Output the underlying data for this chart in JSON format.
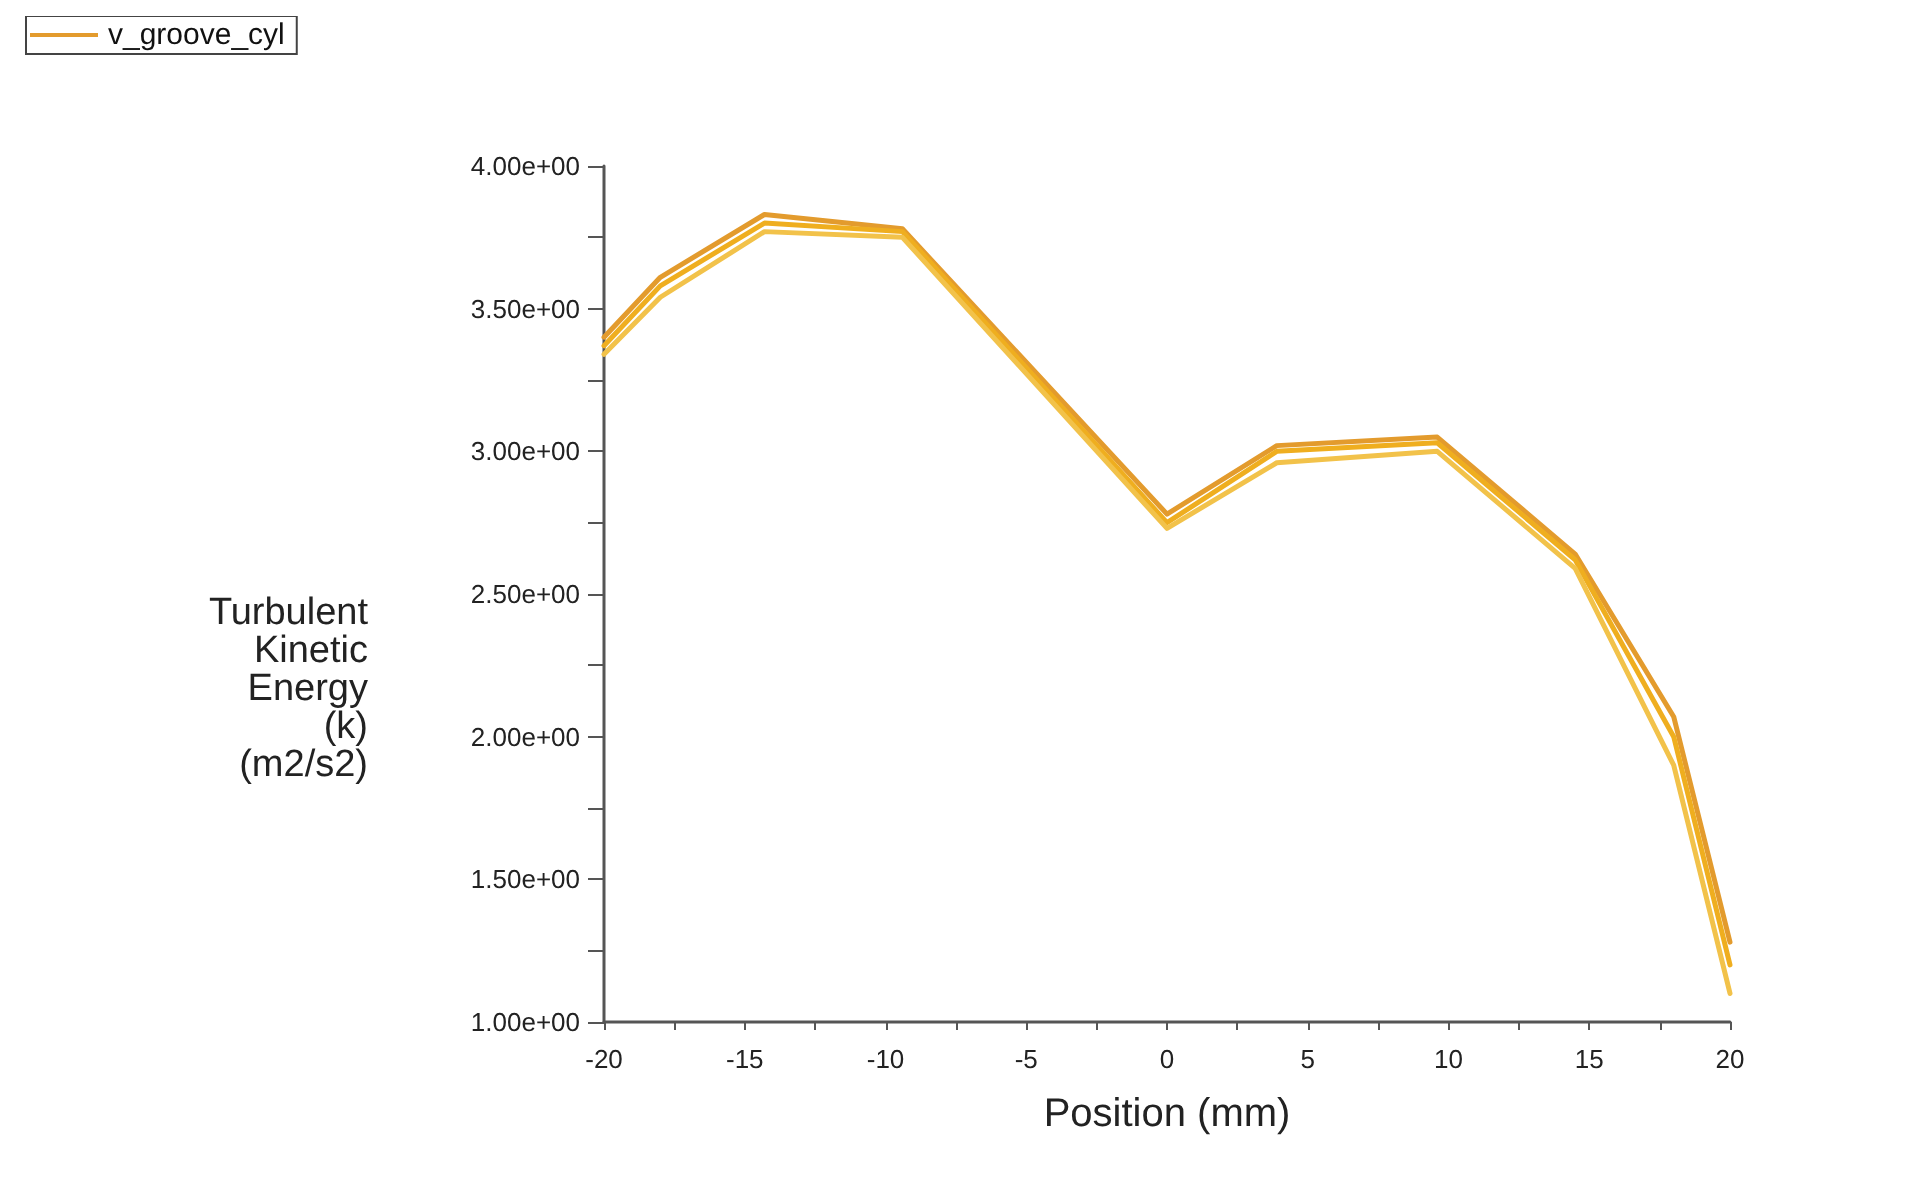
{
  "chart_data": {
    "type": "line",
    "xlabel": "Position (mm)",
    "ylabel": "Turbulent Kinetic Energy (k) (m2/s2)",
    "x": [
      -20,
      -18,
      -14.3,
      -9.4,
      0,
      3.9,
      9.6,
      14.5,
      18,
      20
    ],
    "series": [
      {
        "name": "v_groove_cyl",
        "color": "#e39b2d",
        "values": [
          3.4,
          3.61,
          3.83,
          3.78,
          2.78,
          3.02,
          3.05,
          2.64,
          2.07,
          1.28
        ]
      },
      {
        "color": "#efae1f",
        "values": [
          3.37,
          3.58,
          3.8,
          3.77,
          2.75,
          3.0,
          3.03,
          2.62,
          2.0,
          1.2
        ]
      },
      {
        "color": "#f2c24a",
        "values": [
          3.34,
          3.54,
          3.77,
          3.75,
          2.73,
          2.96,
          3.0,
          2.59,
          1.9,
          1.1
        ]
      }
    ],
    "xlim": [
      -20,
      20
    ],
    "xticks": [
      -20,
      {
        "value": -17.5,
        "label": null
      },
      -15,
      {
        "value": -12.5,
        "label": null
      },
      -10,
      {
        "value": -7.5,
        "label": null
      },
      -5,
      {
        "value": -2.5,
        "label": null
      },
      0,
      {
        "value": 2.5,
        "label": null
      },
      5,
      {
        "value": 7.5,
        "label": null
      },
      10,
      {
        "value": 12.5,
        "label": null
      },
      15,
      {
        "value": 17.5,
        "label": null
      },
      20
    ],
    "ylim": [
      1,
      4
    ],
    "yticks": [
      {
        "value": 1,
        "label": "1.00e+00"
      },
      {
        "value": 1.25,
        "label": null
      },
      {
        "value": 1.5,
        "label": "1.50e+00"
      },
      {
        "value": 1.75,
        "label": null
      },
      {
        "value": 2,
        "label": "2.00e+00"
      },
      {
        "value": 2.25,
        "label": null
      },
      {
        "value": 2.5,
        "label": "2.50e+00"
      },
      {
        "value": 2.75,
        "label": null
      },
      {
        "value": 3,
        "label": "3.00e+00"
      },
      {
        "value": 3.25,
        "label": null
      },
      {
        "value": 3.5,
        "label": "3.50e+00"
      },
      {
        "value": 3.75,
        "label": null
      },
      {
        "value": 4,
        "label": "4.00e+00"
      }
    ],
    "grid": false,
    "legend": "top left"
  }
}
